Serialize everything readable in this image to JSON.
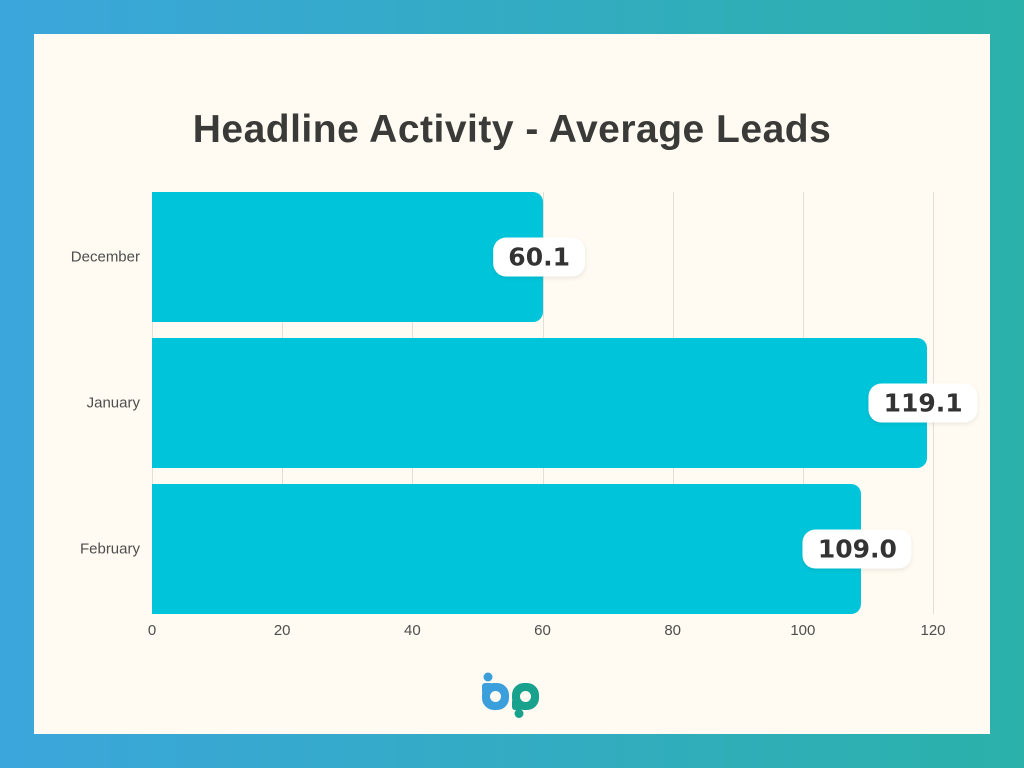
{
  "chart_data": {
    "type": "bar",
    "orientation": "horizontal",
    "title": "Headline Activity - Average Leads",
    "categories": [
      "December",
      "January",
      "February"
    ],
    "values": [
      60.1,
      119.1,
      109.0
    ],
    "value_labels": [
      "60.1",
      "119.1",
      "109.0"
    ],
    "xlabel": "",
    "ylabel": "",
    "xlim": [
      0,
      120
    ],
    "xticks": [
      0,
      20,
      40,
      60,
      80,
      100,
      120
    ],
    "grid": "vertical-only",
    "legend": "none",
    "bar_color": "#00C5DA",
    "value_badge_bg": "#FFFFFF",
    "value_badge_text": "#333333"
  },
  "page": {
    "background_gradient_left": "#3BA6DC",
    "background_gradient_right": "#2BB1AA",
    "card_background": "#FFFBF2",
    "title_color": "#3A3A38",
    "label_color": "#4E4E4E",
    "gridline_color": "#E2DFD8"
  },
  "logo": {
    "name": "bp",
    "blue": "#3A9FDA",
    "teal": "#18A28D"
  }
}
